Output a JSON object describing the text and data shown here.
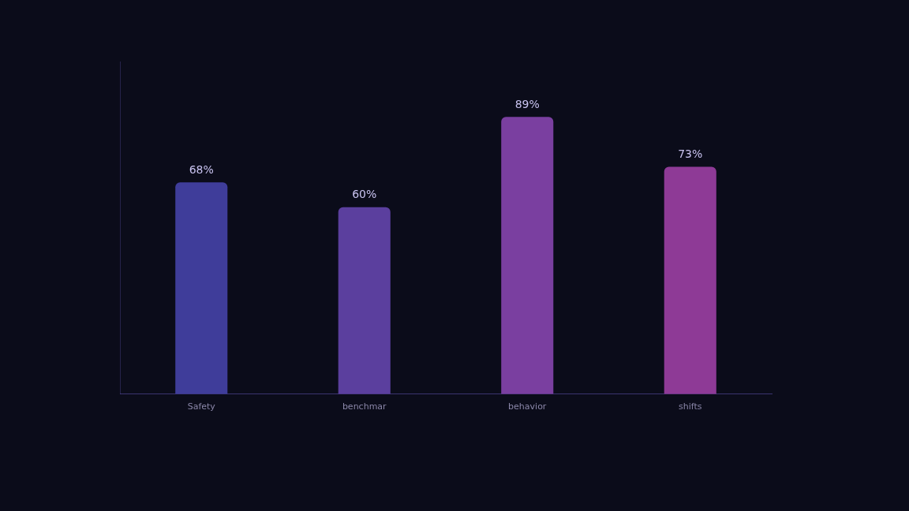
{
  "chart_data": {
    "type": "bar",
    "categories": [
      "Safety",
      "benchmar",
      "behavior",
      "shifts"
    ],
    "values": [
      68,
      60,
      89,
      73
    ],
    "value_labels": [
      "68%",
      "60%",
      "89%",
      "73%"
    ],
    "colors": [
      "#3f3d9a",
      "#5b3f9e",
      "#7a3fa0",
      "#8e3a96"
    ],
    "legend": false
  }
}
